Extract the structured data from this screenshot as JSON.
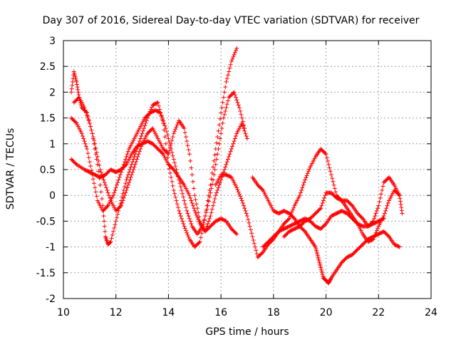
{
  "chart_data": {
    "type": "scatter",
    "title": "Day 307 of 2016, Sidereal Day-to-day VTEC variation (SDTVAR) for receiver",
    "xlabel": "GPS time / hours",
    "ylabel": "SDTVAR / TECUs",
    "xlim": [
      10,
      24
    ],
    "ylim": [
      -2,
      3
    ],
    "x_ticks": [
      10,
      12,
      14,
      16,
      18,
      20,
      22,
      24
    ],
    "y_ticks": [
      -2,
      -1.5,
      -1,
      -0.5,
      0,
      0.5,
      1,
      1.5,
      2,
      2.5,
      3
    ],
    "x_tick_labels": [
      "10",
      "12",
      "14",
      "16",
      "18",
      "20",
      "22",
      "24"
    ],
    "y_tick_labels": [
      "-2",
      "-1.5",
      "-1",
      "-0.5",
      "0",
      "0.5",
      "1",
      "1.5",
      "2",
      "2.5",
      "3"
    ],
    "grid": true,
    "marker": "plus",
    "color": "#ff0000",
    "series": [
      {
        "x": [
          10.3,
          10.4,
          10.5,
          10.6,
          10.7,
          10.9,
          11.1,
          11.3,
          11.5,
          11.6,
          11.7,
          11.8,
          12.0,
          12.2,
          12.4,
          12.6,
          12.8,
          13.0,
          13.2,
          13.4,
          13.6,
          13.8,
          14.0,
          14.2,
          14.4,
          14.6,
          14.8,
          15.0,
          15.2,
          15.4,
          15.6,
          15.8,
          16.0,
          16.2,
          16.4,
          16.6
        ],
        "y": [
          2.0,
          2.4,
          2.2,
          1.9,
          1.7,
          1.6,
          1.2,
          0.6,
          -0.2,
          -0.8,
          -0.95,
          -0.9,
          -0.5,
          -0.1,
          0.3,
          0.6,
          0.9,
          1.2,
          1.5,
          1.75,
          1.8,
          1.4,
          0.6,
          0.1,
          -0.3,
          -0.6,
          -0.85,
          -1.0,
          -0.9,
          -0.4,
          0.2,
          0.9,
          1.6,
          2.2,
          2.6,
          2.85
        ]
      },
      {
        "x": [
          10.3,
          10.5,
          10.7,
          10.9,
          11.1,
          11.3,
          11.5,
          11.7,
          11.9,
          12.1,
          12.3,
          12.5,
          12.7,
          12.9,
          13.1,
          13.3,
          13.5,
          13.7,
          13.9,
          14.1,
          14.3,
          14.5,
          14.7,
          14.9,
          15.1,
          15.3,
          15.5,
          15.7,
          15.9,
          16.1,
          16.3,
          16.5,
          16.7,
          16.9
        ],
        "y": [
          1.5,
          1.4,
          1.2,
          0.9,
          0.4,
          -0.1,
          -0.3,
          -0.2,
          0.0,
          0.3,
          0.6,
          0.9,
          1.1,
          1.3,
          1.5,
          1.6,
          1.65,
          1.6,
          1.3,
          0.9,
          0.5,
          0.1,
          -0.3,
          -0.6,
          -0.75,
          -0.6,
          -0.2,
          0.3,
          0.9,
          1.5,
          1.9,
          2.0,
          1.7,
          1.3
        ]
      },
      {
        "x": [
          10.3,
          10.5,
          10.8,
          11.0,
          11.2,
          11.4,
          11.6,
          11.8,
          12.0,
          12.2,
          12.4,
          12.6,
          12.8,
          13.0,
          13.2,
          13.4,
          13.6,
          13.8,
          14.0,
          14.2,
          14.4,
          14.6,
          14.8,
          15.0,
          15.2,
          15.4,
          15.6,
          15.8,
          16.0,
          16.2,
          16.4,
          16.6,
          16.8,
          17.0
        ],
        "y": [
          0.7,
          0.6,
          0.5,
          0.45,
          0.4,
          0.35,
          0.4,
          0.5,
          0.45,
          0.5,
          0.6,
          0.8,
          0.95,
          1.0,
          1.05,
          1.0,
          0.9,
          0.8,
          0.6,
          0.5,
          0.35,
          0.2,
          0.0,
          -0.3,
          -0.55,
          -0.7,
          -0.4,
          0.0,
          0.3,
          0.6,
          0.9,
          1.2,
          1.4,
          1.1
        ]
      },
      {
        "x": [
          10.4,
          10.6,
          10.8,
          11.0,
          11.2,
          11.4,
          11.6,
          11.8,
          12.0,
          12.2,
          12.4,
          12.6,
          12.8,
          13.0,
          13.2,
          13.4,
          13.6,
          13.8,
          14.0,
          14.2,
          14.4,
          14.6,
          14.8,
          15.0,
          15.2,
          15.4,
          15.6,
          15.8,
          16.0,
          16.2,
          16.4,
          16.6
        ],
        "y": [
          1.8,
          1.9,
          1.7,
          1.4,
          1.0,
          0.5,
          0.2,
          -0.1,
          -0.3,
          -0.2,
          0.1,
          0.4,
          0.7,
          1.0,
          1.2,
          1.3,
          1.1,
          0.9,
          0.8,
          1.2,
          1.45,
          1.3,
          0.8,
          0.0,
          -0.5,
          -0.7,
          -0.6,
          -0.5,
          -0.45,
          -0.5,
          -0.65,
          -0.75
        ]
      },
      {
        "x": [
          15.8,
          16.0,
          16.2,
          16.4,
          16.6,
          16.8,
          17.0,
          17.2,
          17.4,
          17.6,
          17.8,
          18.0,
          18.2,
          18.4,
          18.6,
          18.8,
          19.0,
          19.2,
          19.4,
          19.6,
          19.8,
          20.0,
          20.2,
          20.4,
          20.6,
          20.8,
          21.0,
          21.2,
          21.4,
          21.6,
          21.8,
          22.0,
          22.2
        ],
        "y": [
          0.2,
          0.4,
          0.4,
          0.35,
          0.15,
          -0.1,
          -0.4,
          -0.8,
          -1.2,
          -1.1,
          -0.95,
          -0.85,
          -0.7,
          -0.65,
          -0.6,
          -0.55,
          -0.5,
          -0.45,
          -0.5,
          -0.6,
          -0.65,
          -0.55,
          -0.4,
          -0.35,
          -0.3,
          -0.35,
          -0.45,
          -0.55,
          -0.6,
          -0.6,
          -0.55,
          -0.5,
          -0.45
        ]
      },
      {
        "x": [
          17.2,
          17.4,
          17.6,
          17.8,
          18.0,
          18.2,
          18.4,
          18.6,
          18.8,
          19.0,
          19.2,
          19.4,
          19.6,
          19.7,
          19.8,
          19.9,
          20.0,
          20.1,
          20.2,
          20.4,
          20.6,
          20.8,
          21.0,
          21.2,
          21.4,
          21.6,
          21.8,
          22.0,
          22.2,
          22.4,
          22.6,
          22.8
        ],
        "y": [
          0.35,
          0.2,
          0.1,
          -0.1,
          -0.3,
          -0.35,
          -0.3,
          -0.35,
          -0.45,
          -0.6,
          -0.7,
          -0.85,
          -1.0,
          -1.2,
          -1.4,
          -1.6,
          -1.65,
          -1.7,
          -1.6,
          -1.45,
          -1.3,
          -1.2,
          -1.15,
          -1.05,
          -0.95,
          -0.85,
          -0.8,
          -0.75,
          -0.7,
          -0.8,
          -0.95,
          -1.0
        ]
      },
      {
        "x": [
          17.6,
          17.8,
          18.0,
          18.2,
          18.4,
          18.6,
          18.8,
          19.0,
          19.2,
          19.4,
          19.6,
          19.8,
          20.0,
          20.2,
          20.4,
          20.6,
          20.8,
          21.0,
          21.2,
          21.4,
          21.6,
          21.8,
          22.0,
          22.2,
          22.4,
          22.6,
          22.8
        ],
        "y": [
          -1.0,
          -0.9,
          -0.8,
          -0.7,
          -0.55,
          -0.45,
          -0.2,
          0.0,
          0.3,
          0.55,
          0.75,
          0.9,
          0.8,
          0.4,
          0.0,
          -0.1,
          -0.25,
          -0.4,
          -0.55,
          -0.75,
          -0.9,
          -0.85,
          -0.6,
          -0.4,
          -0.1,
          0.1,
          0.0
        ]
      },
      {
        "x": [
          18.4,
          18.6,
          18.8,
          19.0,
          19.2,
          19.4,
          19.6,
          19.8,
          20.0,
          20.2,
          20.4,
          20.6,
          20.8,
          21.0,
          21.2,
          21.4,
          21.6,
          21.8,
          22.0,
          22.2,
          22.4,
          22.6,
          22.8,
          22.9
        ],
        "y": [
          -0.8,
          -0.7,
          -0.65,
          -0.6,
          -0.5,
          -0.45,
          -0.35,
          -0.25,
          0.05,
          0.05,
          -0.05,
          -0.1,
          -0.1,
          -0.2,
          -0.35,
          -0.45,
          -0.6,
          -0.5,
          -0.2,
          0.25,
          0.35,
          0.2,
          0.0,
          -0.35
        ]
      }
    ]
  }
}
